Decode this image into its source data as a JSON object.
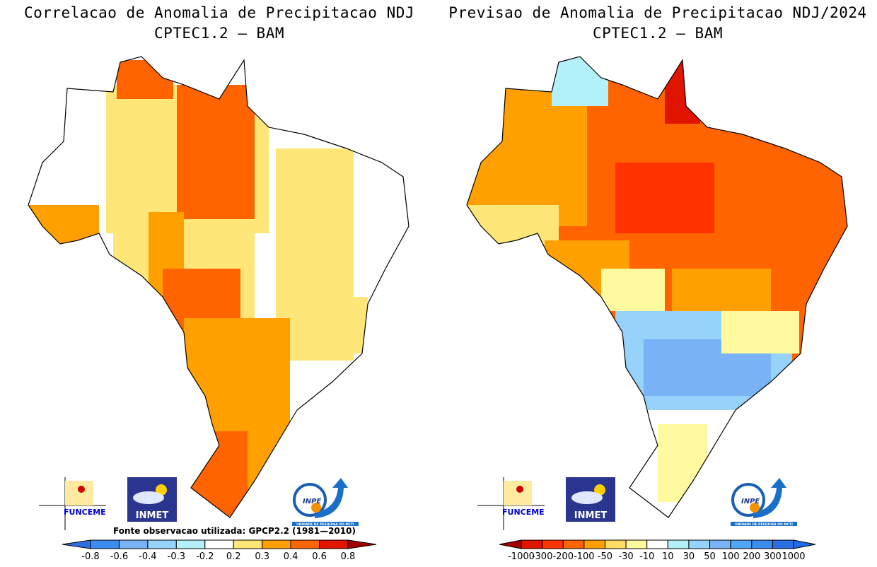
{
  "panels": [
    {
      "title_line1": "Correlacao de Anomalia de Precipitacao NDJ",
      "title_line2": "CPTEC1.2 — BAM",
      "source_note": "Fonte observacao utilizada: GPCP2.2 (1981—2010)",
      "colorbar": {
        "labels": [
          "-0.8",
          "-0.6",
          "-0.4",
          "-0.3",
          "-0.2",
          "0.2",
          "0.3",
          "0.4",
          "0.6",
          "0.8"
        ],
        "colors": [
          "#2a70e0",
          "#3c8cf0",
          "#78b4f5",
          "#96d2fa",
          "#b4f0fa",
          "#ffffff",
          "#ffe678",
          "#ffa000",
          "#ff6400",
          "#e11400",
          "#a50000"
        ]
      }
    },
    {
      "title_line1": "Previsao de Anomalia de Precipitacao NDJ/2024",
      "title_line2": "CPTEC1.2 — BAM",
      "colorbar": {
        "labels": [
          "-1000",
          "-300",
          "-200",
          "-100",
          "-50",
          "-30",
          "-10",
          "10",
          "30",
          "50",
          "100",
          "200",
          "300",
          "1000"
        ],
        "colors": [
          "#a50000",
          "#e11400",
          "#ff3200",
          "#ff6400",
          "#ffa000",
          "#ffdc64",
          "#fffaa0",
          "#ffffff",
          "#b4f0fa",
          "#96d2fa",
          "#78b4f5",
          "#50a5f5",
          "#3c8cf0",
          "#2a70e0",
          "#1e6eeb"
        ]
      }
    }
  ],
  "logos": {
    "funceme": "FUNCEME",
    "inmet": "INMET",
    "inpe": "INPE",
    "inpe_sub": "UNIDADE DE PESQUISA DO MCTI"
  }
}
